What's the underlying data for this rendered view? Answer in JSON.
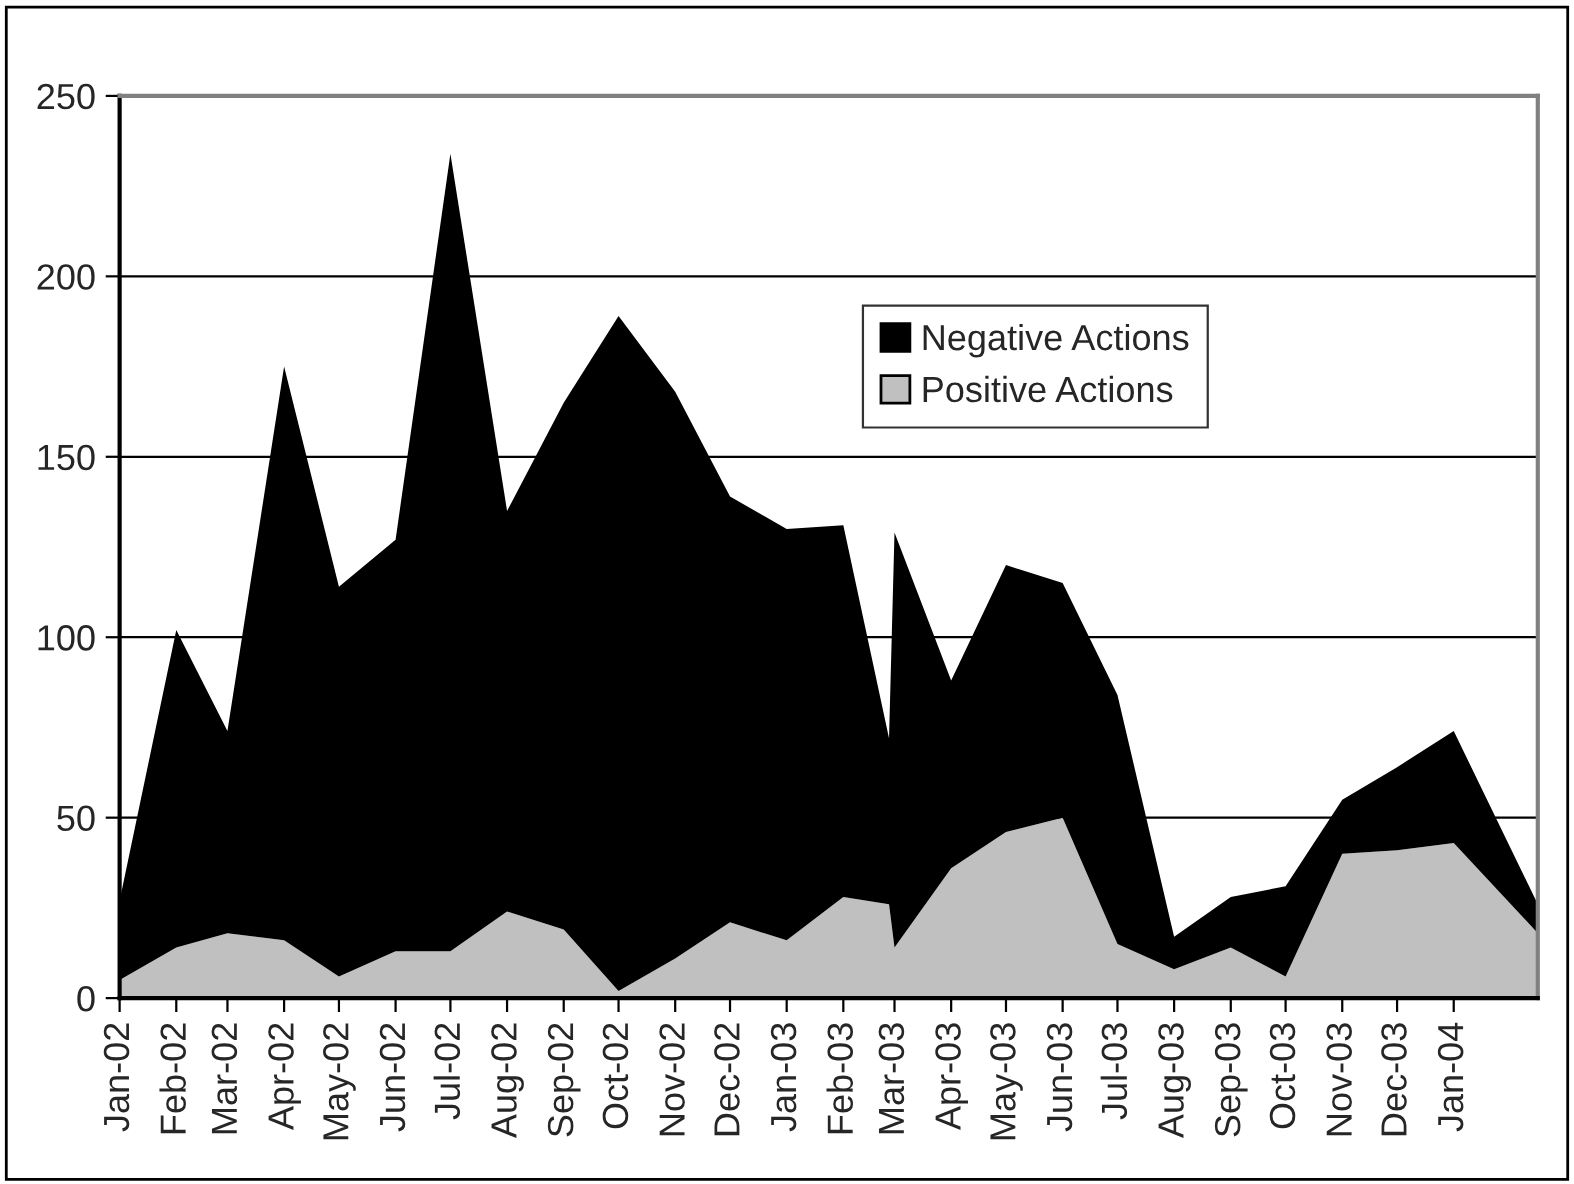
{
  "chart_data": {
    "type": "area",
    "stacked": true,
    "x": [
      "2002-01-01",
      "2002-02-01",
      "2002-03-01",
      "2002-04-01",
      "2002-05-01",
      "2002-06-01",
      "2002-07-01",
      "2002-08-01",
      "2002-09-01",
      "2002-10-01",
      "2002-11-01",
      "2002-12-01",
      "2003-01-01",
      "2003-02-01",
      "2003-02-26",
      "2003-03-01",
      "2003-04-01",
      "2003-05-01",
      "2003-06-01",
      "2003-07-01",
      "2003-08-01",
      "2003-09-01",
      "2003-10-01",
      "2003-11-01",
      "2003-12-01",
      "2004-01-01",
      "2004-02-16"
    ],
    "series": [
      {
        "name": "Positive Actions",
        "color": "#c0c0c0",
        "values": [
          5,
          14,
          18,
          16,
          6,
          13,
          13,
          24,
          19,
          2,
          11,
          21,
          16,
          28,
          26,
          14,
          36,
          46,
          50,
          15,
          8,
          14,
          6,
          40,
          41,
          43,
          18
        ]
      },
      {
        "name": "Negative Actions",
        "color": "#000000",
        "values": [
          22,
          88,
          56,
          159,
          108,
          114,
          221,
          111,
          146,
          187,
          157,
          118,
          114,
          103,
          46,
          115,
          52,
          74,
          65,
          69,
          9,
          14,
          25,
          15,
          23,
          31,
          8
        ]
      }
    ],
    "xlim": [
      "2002-01-01",
      "2004-02-16"
    ],
    "xticks": [
      {
        "value": "2002-01-01",
        "label": "Jan-02"
      },
      {
        "value": "2002-02-01",
        "label": "Feb-02"
      },
      {
        "value": "2002-03-01",
        "label": "Mar-02"
      },
      {
        "value": "2002-04-01",
        "label": "Apr-02"
      },
      {
        "value": "2002-05-01",
        "label": "May-02"
      },
      {
        "value": "2002-06-01",
        "label": "Jun-02"
      },
      {
        "value": "2002-07-01",
        "label": "Jul-02"
      },
      {
        "value": "2002-08-01",
        "label": "Aug-02"
      },
      {
        "value": "2002-09-01",
        "label": "Sep-02"
      },
      {
        "value": "2002-10-01",
        "label": "Oct-02"
      },
      {
        "value": "2002-11-01",
        "label": "Nov-02"
      },
      {
        "value": "2002-12-01",
        "label": "Dec-02"
      },
      {
        "value": "2003-01-01",
        "label": "Jan-03"
      },
      {
        "value": "2003-02-01",
        "label": "Feb-03"
      },
      {
        "value": "2003-03-01",
        "label": "Mar-03"
      },
      {
        "value": "2003-04-01",
        "label": "Apr-03"
      },
      {
        "value": "2003-05-01",
        "label": "May-03"
      },
      {
        "value": "2003-06-01",
        "label": "Jun-03"
      },
      {
        "value": "2003-07-01",
        "label": "Jul-03"
      },
      {
        "value": "2003-08-01",
        "label": "Aug-03"
      },
      {
        "value": "2003-09-01",
        "label": "Sep-03"
      },
      {
        "value": "2003-10-01",
        "label": "Oct-03"
      },
      {
        "value": "2003-11-01",
        "label": "Nov-03"
      },
      {
        "value": "2003-12-01",
        "label": "Dec-03"
      },
      {
        "value": "2004-01-01",
        "label": "Jan-04"
      }
    ],
    "ylim": [
      0,
      250
    ],
    "yticks": [
      0,
      50,
      100,
      150,
      200,
      250
    ],
    "grid": "y",
    "legend": "right"
  }
}
